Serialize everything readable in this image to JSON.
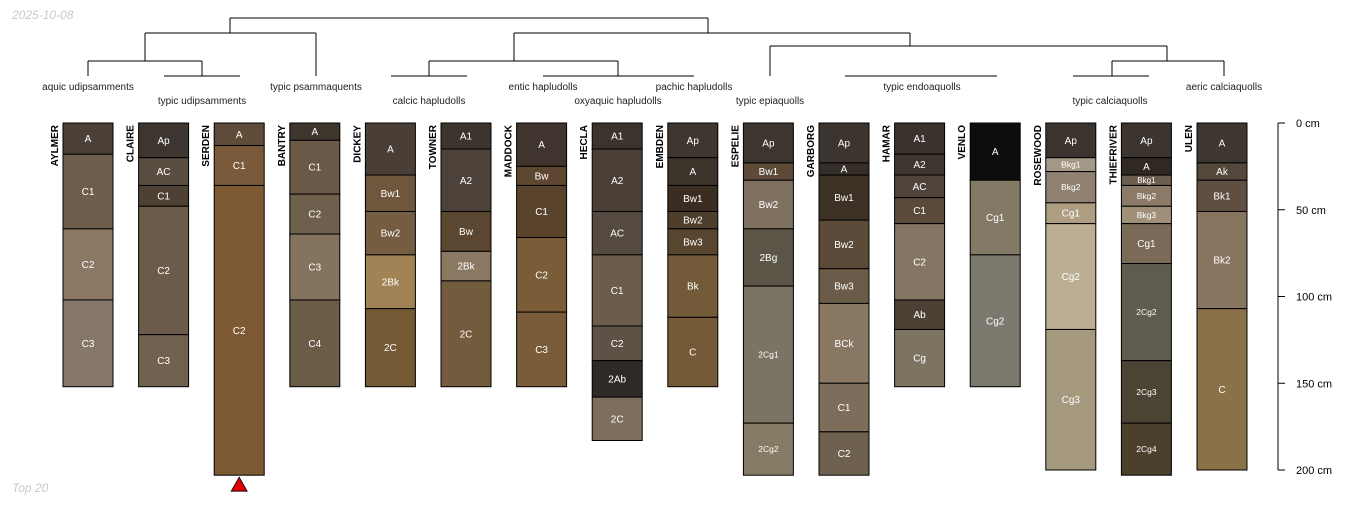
{
  "date_stamp": "2025-10-08",
  "footer_label": "Top 20",
  "chart_data": {
    "type": "soil-profile-sketch",
    "depth_axis": {
      "unit": "cm",
      "ticks": [
        0,
        50,
        100,
        150,
        200
      ],
      "tick_labels": [
        "0 cm",
        "50 cm",
        "100 cm",
        "150 cm",
        "200 cm"
      ],
      "range": [
        0,
        200
      ]
    },
    "truncated_profiles": [
      "SERDEN"
    ],
    "subgroups": [
      "aquic udipsamments",
      "typic udipsamments",
      "typic psammaquents",
      "calcic hapludolls",
      "entic hapludolls",
      "oxyaquic hapludolls",
      "pachic hapludolls",
      "typic epiaquolls",
      "typic endoaquolls",
      "typic calciaquolls",
      "aeric calciaquolls"
    ],
    "profiles": [
      {
        "name": "AYLMER",
        "horizons": [
          {
            "name": "A",
            "top": 0,
            "bottom": 18,
            "color": "#4a4038"
          },
          {
            "name": "C1",
            "top": 18,
            "bottom": 61,
            "color": "#6e5d4b"
          },
          {
            "name": "C2",
            "top": 61,
            "bottom": 102,
            "color": "#8a7865"
          },
          {
            "name": "C3",
            "top": 102,
            "bottom": 152,
            "color": "#85786a"
          }
        ]
      },
      {
        "name": "CLAIRE",
        "horizons": [
          {
            "name": "Ap",
            "top": 0,
            "bottom": 20,
            "color": "#3d352f"
          },
          {
            "name": "AC",
            "top": 20,
            "bottom": 36,
            "color": "#5a4e42"
          },
          {
            "name": "C1",
            "top": 36,
            "bottom": 48,
            "color": "#4e4134"
          },
          {
            "name": "C2",
            "top": 48,
            "bottom": 122,
            "color": "#6b5b4a"
          },
          {
            "name": "C3",
            "top": 122,
            "bottom": 152,
            "color": "#716250"
          }
        ]
      },
      {
        "name": "SERDEN",
        "horizons": [
          {
            "name": "A",
            "top": 0,
            "bottom": 13,
            "color": "#5f4b37"
          },
          {
            "name": "C1",
            "top": 13,
            "bottom": 36,
            "color": "#7a5a3a"
          },
          {
            "name": "C2",
            "top": 36,
            "bottom": 203,
            "color": "#7d5934"
          }
        ]
      },
      {
        "name": "BANTRY",
        "horizons": [
          {
            "name": "A",
            "top": 0,
            "bottom": 10,
            "color": "#3e352d"
          },
          {
            "name": "C1",
            "top": 10,
            "bottom": 41,
            "color": "#6b5948"
          },
          {
            "name": "C2",
            "top": 41,
            "bottom": 64,
            "color": "#6f604e"
          },
          {
            "name": "C3",
            "top": 64,
            "bottom": 102,
            "color": "#84735e"
          },
          {
            "name": "C4",
            "top": 102,
            "bottom": 152,
            "color": "#6b5c48"
          }
        ]
      },
      {
        "name": "DICKEY",
        "horizons": [
          {
            "name": "A",
            "top": 0,
            "bottom": 30,
            "color": "#4a3f36"
          },
          {
            "name": "Bw1",
            "top": 30,
            "bottom": 51,
            "color": "#6e573c"
          },
          {
            "name": "Bw2",
            "top": 51,
            "bottom": 76,
            "color": "#745d40"
          },
          {
            "name": "2Bk",
            "top": 76,
            "bottom": 107,
            "color": "#a18355"
          },
          {
            "name": "2C",
            "top": 107,
            "bottom": 152,
            "color": "#735a35"
          }
        ]
      },
      {
        "name": "TOWNER",
        "horizons": [
          {
            "name": "A1",
            "top": 0,
            "bottom": 15,
            "color": "#3d342d"
          },
          {
            "name": "A2",
            "top": 15,
            "bottom": 51,
            "color": "#4d4239"
          },
          {
            "name": "Bw",
            "top": 51,
            "bottom": 74,
            "color": "#5a4631"
          },
          {
            "name": "2Bk",
            "top": 74,
            "bottom": 91,
            "color": "#8a7862"
          },
          {
            "name": "2C",
            "top": 91,
            "bottom": 152,
            "color": "#735c3d"
          }
        ]
      },
      {
        "name": "MADDOCK",
        "horizons": [
          {
            "name": "A",
            "top": 0,
            "bottom": 25,
            "color": "#3f352e"
          },
          {
            "name": "Bw",
            "top": 25,
            "bottom": 36,
            "color": "#5e4731"
          },
          {
            "name": "C1",
            "top": 36,
            "bottom": 66,
            "color": "#5a432c"
          },
          {
            "name": "C2",
            "top": 66,
            "bottom": 109,
            "color": "#7b5c38"
          },
          {
            "name": "C3",
            "top": 109,
            "bottom": 152,
            "color": "#7a5c3a"
          }
        ]
      },
      {
        "name": "HECLA",
        "horizons": [
          {
            "name": "A1",
            "top": 0,
            "bottom": 15,
            "color": "#3b332e"
          },
          {
            "name": "A2",
            "top": 15,
            "bottom": 51,
            "color": "#4b4038"
          },
          {
            "name": "AC",
            "top": 51,
            "bottom": 76,
            "color": "#544a40"
          },
          {
            "name": "C1",
            "top": 76,
            "bottom": 117,
            "color": "#6b5c4c"
          },
          {
            "name": "C2",
            "top": 117,
            "bottom": 137,
            "color": "#5e5246"
          },
          {
            "name": "2Ab",
            "top": 137,
            "bottom": 158,
            "color": "#2f2a26"
          },
          {
            "name": "2C",
            "top": 158,
            "bottom": 183,
            "color": "#7d6e5e"
          }
        ]
      },
      {
        "name": "EMBDEN",
        "horizons": [
          {
            "name": "Ap",
            "top": 0,
            "bottom": 20,
            "color": "#3f372f"
          },
          {
            "name": "A",
            "top": 20,
            "bottom": 36,
            "color": "#3c332b"
          },
          {
            "name": "Bw1",
            "top": 36,
            "bottom": 51,
            "color": "#3a2e23"
          },
          {
            "name": "Bw2",
            "top": 51,
            "bottom": 61,
            "color": "#4e3e2c"
          },
          {
            "name": "Bw3",
            "top": 61,
            "bottom": 76,
            "color": "#574530"
          },
          {
            "name": "Bk",
            "top": 76,
            "bottom": 112,
            "color": "#735a38"
          },
          {
            "name": "C",
            "top": 112,
            "bottom": 152,
            "color": "#745a36"
          }
        ]
      },
      {
        "name": "ESPELIE",
        "horizons": [
          {
            "name": "Ap",
            "top": 0,
            "bottom": 23,
            "color": "#3d352f"
          },
          {
            "name": "Bw1",
            "top": 23,
            "bottom": 33,
            "color": "#5e4a38"
          },
          {
            "name": "Bw2",
            "top": 33,
            "bottom": 61,
            "color": "#7f715f"
          },
          {
            "name": "2Bg",
            "top": 61,
            "bottom": 94,
            "color": "#5b5547"
          },
          {
            "name": "2Cg1",
            "top": 94,
            "bottom": 173,
            "color": "#7b7464"
          },
          {
            "name": "2Cg2",
            "top": 173,
            "bottom": 203,
            "color": "#857a63"
          }
        ]
      },
      {
        "name": "GARBORG",
        "horizons": [
          {
            "name": "Ap",
            "top": 0,
            "bottom": 23,
            "color": "#3c342e"
          },
          {
            "name": "A",
            "top": 23,
            "bottom": 30,
            "color": "#362e28"
          },
          {
            "name": "Bw1",
            "top": 30,
            "bottom": 56,
            "color": "#3d3025"
          },
          {
            "name": "Bw2",
            "top": 56,
            "bottom": 84,
            "color": "#5b4a38"
          },
          {
            "name": "Bw3",
            "top": 84,
            "bottom": 104,
            "color": "#6b5c4a"
          },
          {
            "name": "BCk",
            "top": 104,
            "bottom": 150,
            "color": "#887763"
          },
          {
            "name": "C1",
            "top": 150,
            "bottom": 178,
            "color": "#7d6e5c"
          },
          {
            "name": "C2",
            "top": 178,
            "bottom": 203,
            "color": "#6e6150"
          }
        ]
      },
      {
        "name": "HAMAR",
        "horizons": [
          {
            "name": "A1",
            "top": 0,
            "bottom": 18,
            "color": "#3a322c"
          },
          {
            "name": "A2",
            "top": 18,
            "bottom": 30,
            "color": "#3e352e"
          },
          {
            "name": "AC",
            "top": 30,
            "bottom": 43,
            "color": "#4e443b"
          },
          {
            "name": "C1",
            "top": 43,
            "bottom": 58,
            "color": "#5a4a3a"
          },
          {
            "name": "C2",
            "top": 58,
            "bottom": 102,
            "color": "#857563"
          },
          {
            "name": "Ab",
            "top": 102,
            "bottom": 119,
            "color": "#4d4135"
          },
          {
            "name": "Cg",
            "top": 119,
            "bottom": 152,
            "color": "#7d7361"
          }
        ]
      },
      {
        "name": "VENLO",
        "horizons": [
          {
            "name": "A",
            "top": 0,
            "bottom": 33,
            "color": "#0d0d0d"
          },
          {
            "name": "Cg1",
            "top": 33,
            "bottom": 76,
            "color": "#837a65"
          },
          {
            "name": "Cg2",
            "top": 76,
            "bottom": 152,
            "color": "#7c786e"
          }
        ]
      },
      {
        "name": "ROSEWOOD",
        "horizons": [
          {
            "name": "Ap",
            "top": 0,
            "bottom": 20,
            "color": "#3c342e"
          },
          {
            "name": "Bkg1",
            "top": 20,
            "bottom": 28,
            "color": "#a49888"
          },
          {
            "name": "Bkg2",
            "top": 28,
            "bottom": 46,
            "color": "#908170"
          },
          {
            "name": "Cg1",
            "top": 46,
            "bottom": 58,
            "color": "#ad9e81"
          },
          {
            "name": "Cg2",
            "top": 58,
            "bottom": 119,
            "color": "#bcae92"
          },
          {
            "name": "Cg3",
            "top": 119,
            "bottom": 200,
            "color": "#a5997e"
          }
        ]
      },
      {
        "name": "THIEFRIVER",
        "horizons": [
          {
            "name": "Ap",
            "top": 0,
            "bottom": 20,
            "color": "#3c342e"
          },
          {
            "name": "A",
            "top": 20,
            "bottom": 30,
            "color": "#2f2823"
          },
          {
            "name": "Bkg1",
            "top": 30,
            "bottom": 36,
            "color": "#6b5e4e"
          },
          {
            "name": "Bkg2",
            "top": 36,
            "bottom": 48,
            "color": "#8a7a67"
          },
          {
            "name": "Bkg3",
            "top": 48,
            "bottom": 58,
            "color": "#a09079"
          },
          {
            "name": "Cg1",
            "top": 58,
            "bottom": 81,
            "color": "#7a6a58"
          },
          {
            "name": "2Cg2",
            "top": 81,
            "bottom": 137,
            "color": "#605b4f"
          },
          {
            "name": "2Cg3",
            "top": 137,
            "bottom": 173,
            "color": "#4b4434"
          },
          {
            "name": "2Cg4",
            "top": 173,
            "bottom": 203,
            "color": "#4a402c"
          }
        ]
      },
      {
        "name": "ULEN",
        "horizons": [
          {
            "name": "A",
            "top": 0,
            "bottom": 23,
            "color": "#3e3630"
          },
          {
            "name": "Ak",
            "top": 23,
            "bottom": 33,
            "color": "#54473b"
          },
          {
            "name": "Bk1",
            "top": 33,
            "bottom": 51,
            "color": "#5e4f40"
          },
          {
            "name": "Bk2",
            "top": 51,
            "bottom": 107,
            "color": "#887560"
          },
          {
            "name": "C",
            "top": 107,
            "bottom": 200,
            "color": "#8a7148"
          }
        ]
      }
    ]
  }
}
